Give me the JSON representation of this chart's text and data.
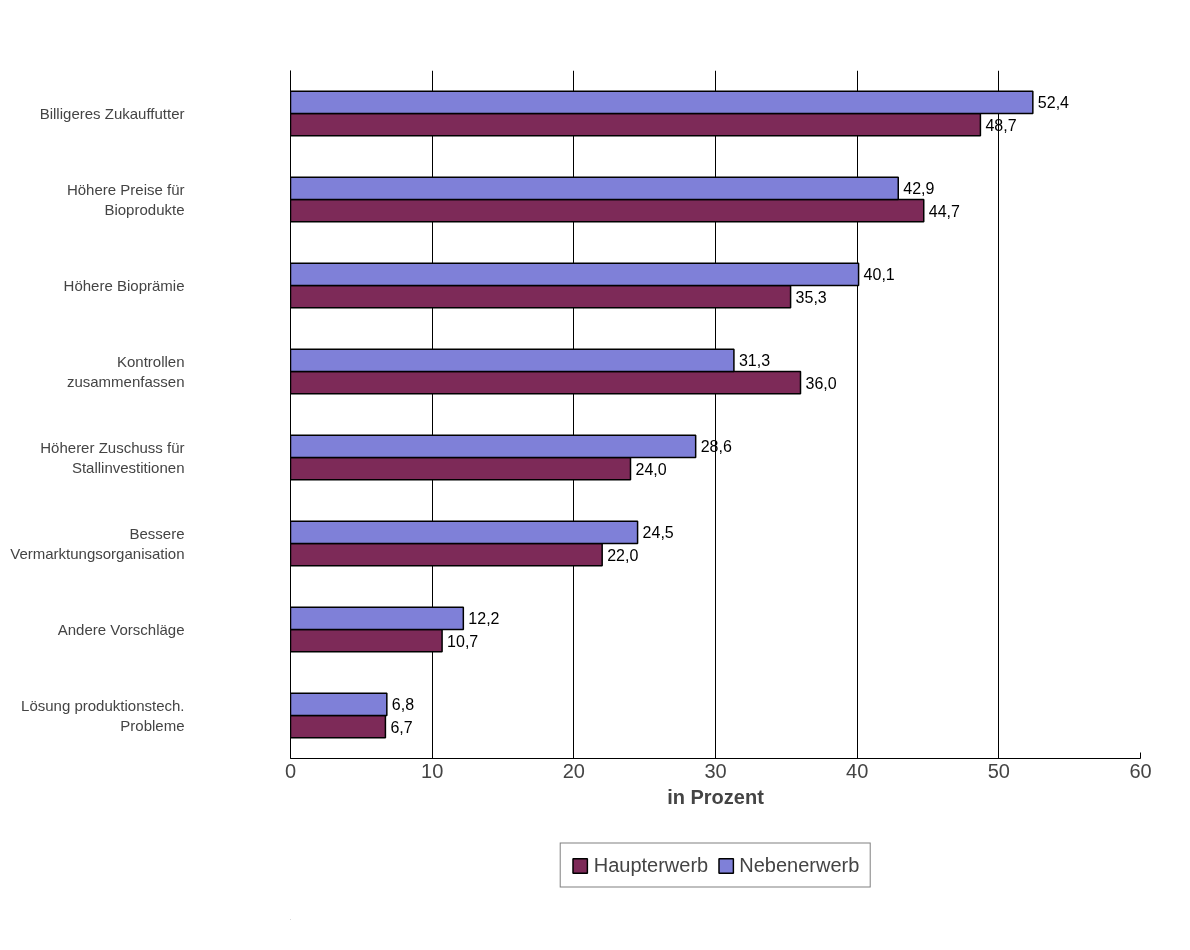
{
  "chart_data": {
    "type": "bar",
    "orientation": "horizontal",
    "xlabel": "in Prozent",
    "categories": [
      "Billigeres Zukauffutter",
      "Höhere Preise für Bioprodukte",
      "Höhere Bioprämie",
      "Kontrollen zusammenfassen",
      "Höherer Zuschuss für Stallinvestitionen",
      "Bessere Vermarktungsorganisation",
      "Andere Vorschläge",
      "Lösung produktionstech. Probleme"
    ],
    "series": [
      {
        "name": "Haupterwerb",
        "color": "#7d2a58",
        "values": [
          48.7,
          44.7,
          35.3,
          36.0,
          24.0,
          22.0,
          10.7,
          6.7
        ],
        "value_labels": [
          "48,7",
          "44,7",
          "35,3",
          "36,0",
          "24,0",
          "22,0",
          "10,7",
          "6,7"
        ]
      },
      {
        "name": "Nebenerwerb",
        "color": "#7f80d8",
        "values": [
          52.4,
          42.9,
          40.1,
          31.3,
          28.6,
          24.5,
          12.2,
          6.8
        ],
        "value_labels": [
          "52,4",
          "42,9",
          "40,1",
          "31,3",
          "28,6",
          "24,5",
          "12,2",
          "6,8"
        ]
      }
    ],
    "xlim": [
      0,
      60
    ],
    "xticks": [
      0,
      10,
      20,
      30,
      40,
      50,
      60
    ],
    "grid": "x",
    "legend": "bottom"
  }
}
